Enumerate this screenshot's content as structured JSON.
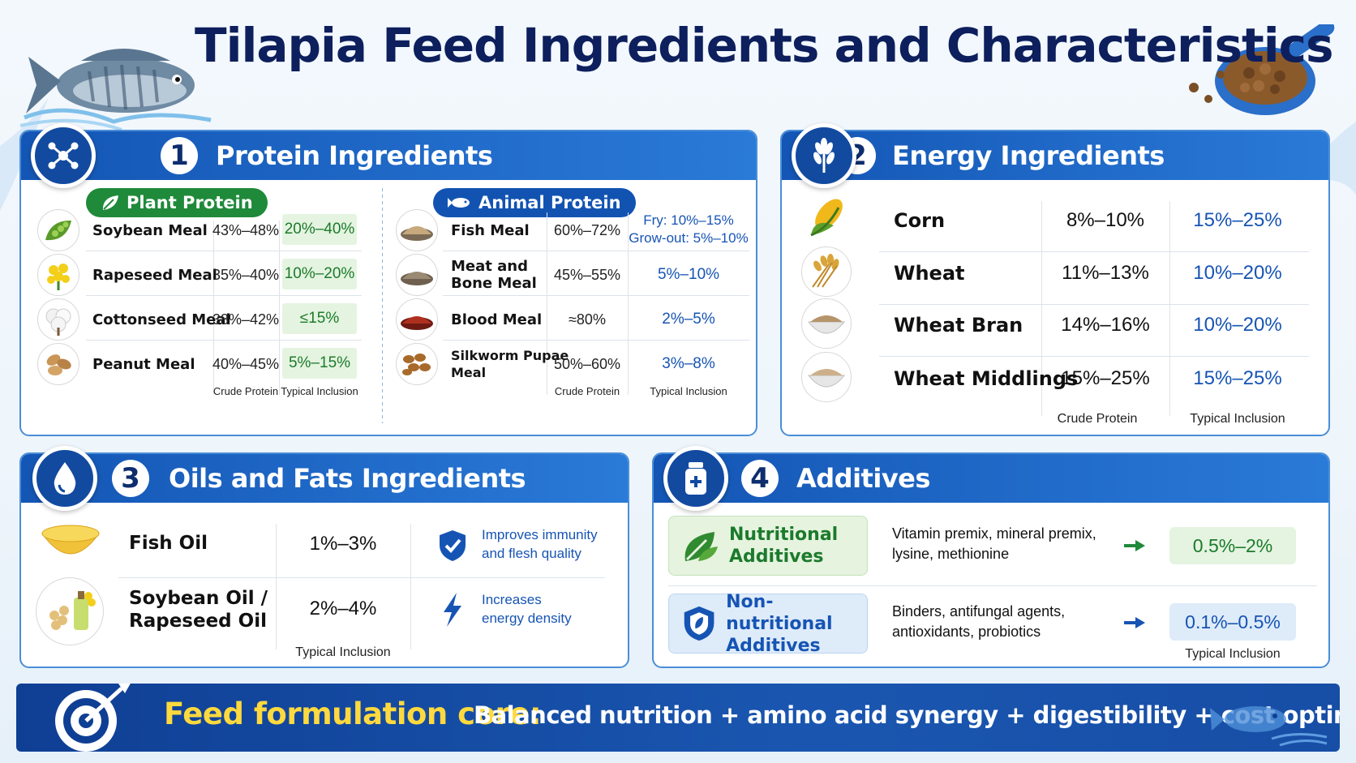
{
  "title": "Tilapia Feed Ingredients and Characteristics",
  "colors": {
    "primary_blue": "#1456b5",
    "navy": "#0d1f5c",
    "green": "#1f8a3a",
    "accent_yellow": "#ffd93d"
  },
  "protein": {
    "number": "1",
    "title": "Protein Ingredients",
    "icon": "molecule-icon",
    "plant": {
      "label": "Plant Protein",
      "items": [
        {
          "name": "Soybean Meal",
          "crude": "43%–48%",
          "inclusion": "20%–40%",
          "icon": "soybean-icon"
        },
        {
          "name": "Rapeseed Meal",
          "crude": "35%–40%",
          "inclusion": "10%–20%",
          "icon": "rapeseed-flower-icon"
        },
        {
          "name": "Cottonseed Meal",
          "crude": "38%–42%",
          "inclusion": "≤15%",
          "icon": "cotton-icon"
        },
        {
          "name": "Peanut Meal",
          "crude": "40%–45%",
          "inclusion": "5%–15%",
          "icon": "peanut-icon"
        }
      ],
      "col_crude": "Crude Protein",
      "col_inclusion": "Typical Inclusion"
    },
    "animal": {
      "label": "Animal Protein",
      "items": [
        {
          "name": "Fish Meal",
          "crude": "60%–72%",
          "inclusion_line1": "Fry: 10%–15%",
          "inclusion_line2": "Grow-out: 5%–10%",
          "icon": "fish-meal-icon"
        },
        {
          "name_line1": "Meat and",
          "name_line2": "Bone Meal",
          "crude": "45%–55%",
          "inclusion": "5%–10%",
          "icon": "bone-meal-icon"
        },
        {
          "name": "Blood Meal",
          "crude": "≈80%",
          "inclusion": "2%–5%",
          "icon": "blood-meal-icon"
        },
        {
          "name_line1": "Silkworm Pupae",
          "name_line2": "Meal",
          "crude": "50%–60%",
          "inclusion": "3%–8%",
          "icon": "silkworm-pupae-icon"
        }
      ],
      "col_crude": "Crude Protein",
      "col_inclusion": "Typical Inclusion"
    }
  },
  "energy": {
    "number": "2",
    "title": "Energy Ingredients",
    "icon": "wheat-icon",
    "items": [
      {
        "name": "Corn",
        "crude": "8%–10%",
        "inclusion": "15%–25%",
        "icon": "corn-icon"
      },
      {
        "name": "Wheat",
        "crude": "11%–13%",
        "inclusion": "10%–20%",
        "icon": "wheat-bowl-icon"
      },
      {
        "name": "Wheat Bran",
        "crude": "14%–16%",
        "inclusion": "10%–20%",
        "icon": "bran-bowl-icon"
      },
      {
        "name": "Wheat Middlings",
        "crude": "15%–25%",
        "inclusion": "15%–25%",
        "icon": "middlings-bowl-icon"
      }
    ],
    "col_crude": "Crude Protein",
    "col_inclusion": "Typical Inclusion"
  },
  "oils": {
    "number": "3",
    "title": "Oils and Fats Ingredients",
    "icon": "drop-icon",
    "items": [
      {
        "name": "Fish Oil",
        "inclusion": "1%–3%",
        "benefit_line1": "Improves immunity",
        "benefit_line2": "and flesh quality",
        "icon": "fish-oil-icon",
        "benefit_icon": "shield-check-icon"
      },
      {
        "name_line1": "Soybean Oil /",
        "name_line2": "Rapeseed Oil",
        "inclusion": "2%–4%",
        "benefit_line1": "Increases",
        "benefit_line2": "energy density",
        "icon": "soy-oil-icon",
        "benefit_icon": "lightning-icon"
      }
    ],
    "col_inclusion": "Typical Inclusion"
  },
  "additives": {
    "number": "4",
    "title": "Additives",
    "icon": "medicine-bottle-icon",
    "items": [
      {
        "title_line1": "Nutritional",
        "title_line2": "Additives",
        "desc_line1": "Vitamin premix, mineral premix,",
        "desc_line2": "lysine, methionine",
        "inclusion": "0.5%–2%",
        "icon": "leaf-icon"
      },
      {
        "title_line1": "Non-nutritional",
        "title_line2": "Additives",
        "desc_line1": "Binders, antifungal agents,",
        "desc_line2": "antioxidants, probiotics",
        "inclusion": "0.1%–0.5%",
        "icon": "shield-icon"
      }
    ],
    "col_inclusion": "Typical Inclusion"
  },
  "footer": {
    "core_label": "Feed formulation core:",
    "text": "Balanced nutrition + amino acid synergy + digestibility + cost optimization",
    "icon": "target-arrow-icon"
  }
}
